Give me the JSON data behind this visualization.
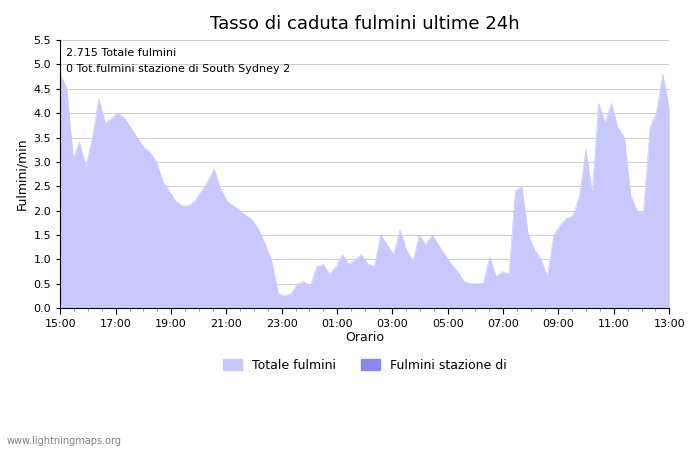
{
  "title": "Tasso di caduta fulmini ultime 24h",
  "xlabel": "Orario",
  "ylabel": "Fulmini/min",
  "ylim": [
    0,
    5.5
  ],
  "yticks": [
    0.0,
    0.5,
    1.0,
    1.5,
    2.0,
    2.5,
    3.0,
    3.5,
    4.0,
    4.5,
    5.0,
    5.5
  ],
  "xtick_labels": [
    "15:00",
    "17:00",
    "19:00",
    "21:00",
    "23:00",
    "01:00",
    "03:00",
    "05:00",
    "07:00",
    "09:00",
    "11:00",
    "13:00"
  ],
  "annotation_line1": "2.715 Totale fulmini",
  "annotation_line2": "0 Tot.fulmini stazione di South Sydney 2",
  "fill_color": "#c8c8ff",
  "fill_color2": "#8888ee",
  "legend_label1": "Totale fulmini",
  "legend_label2": "Fulmini stazione di",
  "watermark": "www.lightningmaps.org",
  "background_color": "#ffffff",
  "title_fontsize": 13,
  "x_values": [
    0,
    1,
    2,
    3,
    4,
    5,
    6,
    7,
    8,
    9,
    10,
    11,
    12,
    13,
    14,
    15,
    16,
    17,
    18,
    19,
    20,
    21,
    22,
    23,
    24,
    25,
    26,
    27,
    28,
    29,
    30,
    31,
    32,
    33,
    34,
    35,
    36,
    37,
    38,
    39,
    40,
    41,
    42,
    43,
    44,
    45,
    46,
    47,
    48,
    49,
    50,
    51,
    52,
    53,
    54,
    55,
    56,
    57,
    58,
    59,
    60,
    61,
    62,
    63,
    64,
    65,
    66,
    67,
    68,
    69,
    70,
    71,
    72,
    73,
    74,
    75,
    76,
    77,
    78,
    79,
    80,
    81,
    82,
    83,
    84,
    85,
    86,
    87,
    88,
    89,
    90,
    91,
    92,
    93,
    94,
    95
  ],
  "y_values": [
    4.8,
    4.5,
    3.1,
    3.4,
    2.9,
    3.5,
    4.3,
    3.8,
    3.9,
    4.0,
    3.9,
    3.7,
    3.5,
    3.3,
    3.2,
    3.0,
    2.6,
    2.4,
    2.2,
    2.1,
    2.1,
    2.2,
    2.4,
    2.6,
    2.85,
    2.45,
    2.2,
    2.1,
    2.0,
    1.9,
    1.8,
    1.6,
    1.3,
    0.95,
    0.3,
    0.25,
    0.3,
    0.5,
    0.55,
    0.45,
    0.85,
    0.9,
    0.7,
    0.85,
    1.1,
    0.9,
    1.0,
    1.1,
    0.9,
    0.85,
    1.5,
    1.3,
    1.1,
    1.6,
    1.2,
    0.95,
    1.5,
    1.3,
    1.5,
    1.3,
    1.1,
    0.9,
    0.75,
    0.55,
    0.5,
    0.5,
    0.5,
    1.05,
    0.65,
    0.75,
    0.7,
    2.4,
    2.5,
    1.5,
    1.2,
    1.0,
    0.65,
    1.5,
    1.7,
    1.85,
    1.9,
    2.3,
    3.25,
    2.35,
    4.2,
    3.8,
    4.2,
    3.7,
    3.5,
    2.3,
    2.0,
    1.95,
    3.7,
    4.0,
    4.8,
    4.1
  ]
}
